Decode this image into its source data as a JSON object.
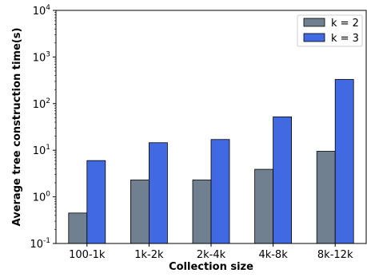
{
  "chart_data": {
    "type": "bar",
    "title": "",
    "xlabel": "Collection size",
    "ylabel": "Average tree construction time(s)",
    "yscale": "log",
    "ylim": [
      0.1,
      10000
    ],
    "yticks": [
      {
        "exp": "-1",
        "value": 0.1
      },
      {
        "exp": "0",
        "value": 1
      },
      {
        "exp": "1",
        "value": 10
      },
      {
        "exp": "2",
        "value": 100
      },
      {
        "exp": "3",
        "value": 1000
      },
      {
        "exp": "4",
        "value": 10000
      }
    ],
    "ytick_base": "10",
    "categories": [
      "100-1k",
      "1k-2k",
      "2k-4k",
      "4k-8k",
      "8k-12k"
    ],
    "series": [
      {
        "name": "k = 2",
        "color": "#708090",
        "values": [
          0.45,
          2.3,
          2.3,
          3.9,
          9.5
        ]
      },
      {
        "name": "k = 3",
        "color": "#4169E1",
        "values": [
          6.0,
          14.5,
          17.0,
          52.0,
          330.0
        ]
      }
    ],
    "grid": false,
    "legend_position": "top-right"
  }
}
